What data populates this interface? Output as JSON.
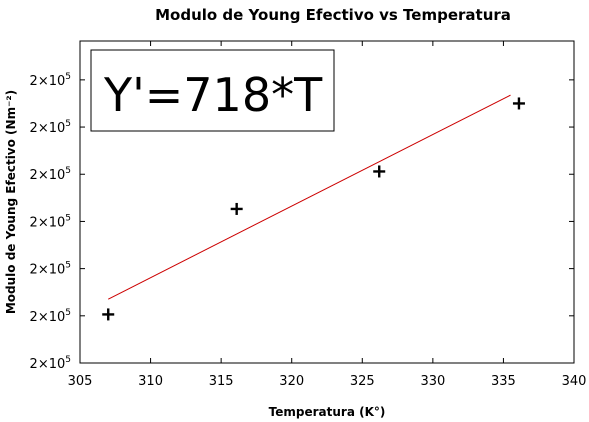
{
  "chart_data": {
    "type": "scatter",
    "title": "Modulo de Young Efectivo vs Temperatura",
    "xlabel": "Temperatura (K°)",
    "ylabel": "Modulo de Young Efectivo (Nm⁻²)",
    "xlim": [
      305,
      340
    ],
    "ylim": [
      213100,
      236300
    ],
    "x_ticks": [
      305,
      310,
      315,
      320,
      325,
      330,
      335,
      340
    ],
    "y_ticks": [
      213100,
      216500,
      219900,
      223300,
      226700,
      230100,
      233500
    ],
    "y_tick_base": "2×10",
    "y_tick_exp": "5",
    "grid": false,
    "points": [
      {
        "x": 307.0,
        "y": 216600
      },
      {
        "x": 316.1,
        "y": 224200
      },
      {
        "x": 326.2,
        "y": 226900
      },
      {
        "x": 336.1,
        "y": 231800
      }
    ],
    "fit_line": {
      "x": [
        307.0,
        335.5
      ],
      "y": [
        217700,
        232400
      ],
      "color": "#cc0000"
    },
    "annotation": "Y'=718*T"
  }
}
